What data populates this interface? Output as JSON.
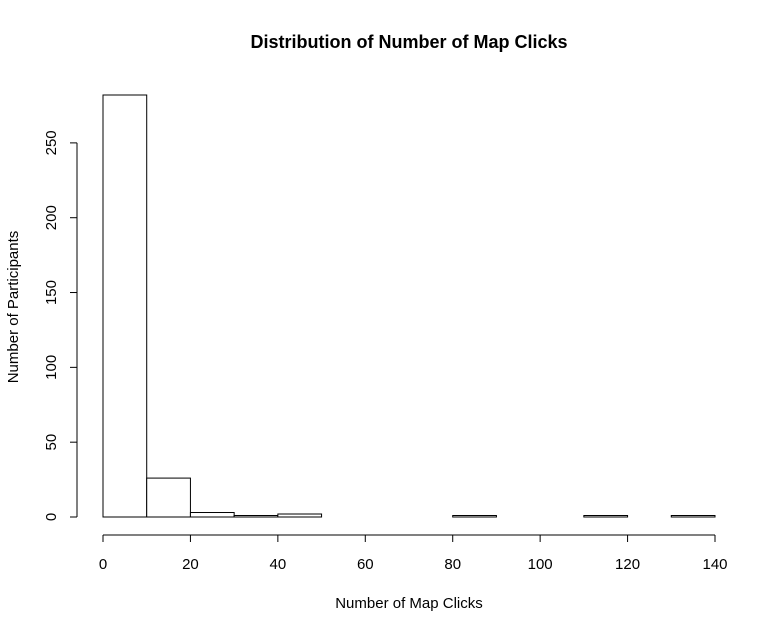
{
  "chart_data": {
    "type": "bar",
    "subtype": "histogram",
    "title": "Distribution of Number of Map Clicks",
    "xlabel": "Number of Map Clicks",
    "ylabel": "Number of Participants",
    "bins": [
      {
        "start": 0,
        "end": 10,
        "count": 282
      },
      {
        "start": 10,
        "end": 20,
        "count": 26
      },
      {
        "start": 20,
        "end": 30,
        "count": 3
      },
      {
        "start": 30,
        "end": 40,
        "count": 1
      },
      {
        "start": 40,
        "end": 50,
        "count": 2
      },
      {
        "start": 50,
        "end": 60,
        "count": 0
      },
      {
        "start": 60,
        "end": 70,
        "count": 0
      },
      {
        "start": 70,
        "end": 80,
        "count": 0
      },
      {
        "start": 80,
        "end": 90,
        "count": 1
      },
      {
        "start": 90,
        "end": 100,
        "count": 0
      },
      {
        "start": 100,
        "end": 110,
        "count": 0
      },
      {
        "start": 110,
        "end": 120,
        "count": 1
      },
      {
        "start": 120,
        "end": 130,
        "count": 0
      },
      {
        "start": 130,
        "end": 140,
        "count": 1
      }
    ],
    "xlim": [
      0,
      140
    ],
    "ylim": [
      0,
      282
    ],
    "x_ticks": [
      "0",
      "20",
      "40",
      "60",
      "80",
      "100",
      "120",
      "140"
    ],
    "y_ticks": [
      "0",
      "50",
      "100",
      "150",
      "200",
      "250"
    ],
    "grid": false,
    "bar_fill": "#ffffff",
    "bar_stroke": "#000000"
  }
}
